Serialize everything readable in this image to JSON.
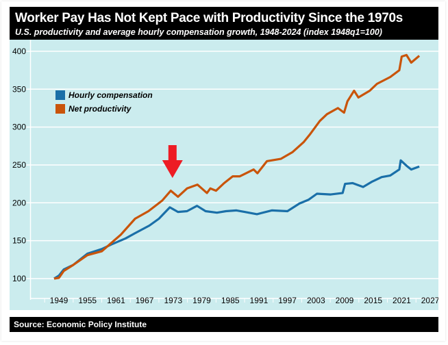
{
  "header": {
    "title": "Worker Pay Has Not Kept Pace with Productivity Since the 1970s",
    "subtitle": "U.S. productivity and average hourly compensation growth, 1948-2024 (index 1948q1=100)"
  },
  "footer": {
    "source": "Source: Economic Policy Institute"
  },
  "chart_data": {
    "type": "line",
    "title": "Worker Pay Has Not Kept Pace with Productivity Since the 1970s",
    "subtitle": "U.S. productivity and average hourly compensation growth, 1948-2024 (index 1948q1=100)",
    "xlabel": "",
    "ylabel": "",
    "xlim": [
      1943,
      2027
    ],
    "ylim": [
      75,
      410
    ],
    "x_ticks": [
      1949,
      1955,
      1961,
      1967,
      1973,
      1979,
      1985,
      1991,
      1997,
      2003,
      2009,
      2015,
      2021,
      2027
    ],
    "y_ticks": [
      100,
      150,
      200,
      250,
      300,
      350,
      400
    ],
    "grid": "horizontal",
    "legend": "top-left",
    "annotation": {
      "type": "arrow",
      "points_to_year": 1973,
      "color": "#ed1c24"
    },
    "series": [
      {
        "name": "Hourly compensation",
        "color": "#1a6fa8",
        "x": [
          1948,
          1949,
          1950,
          1952,
          1955,
          1958,
          1960,
          1963,
          1965,
          1968,
          1970,
          1972.3,
          1974,
          1975.9,
          1978,
          1979.8,
          1982.2,
          1984.1,
          1986.3,
          1988,
          1990.6,
          1993.7,
          1997,
          1999.5,
          2001.4,
          2003.2,
          2006.1,
          2008.6,
          2009.1,
          2010.7,
          2012.9,
          2014.8,
          2016.8,
          2018.6,
          2020.5,
          2020.8,
          2022,
          2023,
          2024.7
        ],
        "y": [
          100,
          104,
          112,
          118,
          133,
          139,
          145,
          153,
          160,
          170,
          179,
          194,
          188,
          189,
          196,
          189,
          187,
          189,
          190,
          188,
          185,
          190,
          189,
          199,
          204,
          212,
          211,
          213,
          225,
          226,
          221,
          228,
          234,
          236,
          244,
          256,
          249,
          244,
          248
        ]
      },
      {
        "name": "Net productivity",
        "color": "#c9540a",
        "x": [
          1948,
          1949,
          1950,
          1952,
          1955,
          1958,
          1960,
          1962,
          1965,
          1967.8,
          1970.7,
          1972.5,
          1974,
          1975.9,
          1978.1,
          1980.1,
          1980.8,
          1982,
          1983.7,
          1985.5,
          1987,
          1989.9,
          1990.7,
          1992.7,
          1995.6,
          1998.1,
          2000.4,
          2001.8,
          2003.8,
          2005.3,
          2007.6,
          2008.9,
          2009.6,
          2011,
          2011.9,
          2014.3,
          2015.8,
          2018.6,
          2020.5,
          2021,
          2022,
          2023,
          2024.7
        ],
        "y": [
          100,
          101,
          110,
          118,
          131,
          136,
          147,
          158,
          179,
          189,
          203,
          216,
          208,
          219,
          224,
          213,
          219,
          216,
          226,
          235,
          235,
          244,
          239,
          255,
          258,
          267,
          280,
          291,
          308,
          317,
          325,
          319,
          334,
          348,
          339,
          348,
          357,
          366,
          375,
          393,
          395,
          385,
          394
        ]
      }
    ]
  }
}
